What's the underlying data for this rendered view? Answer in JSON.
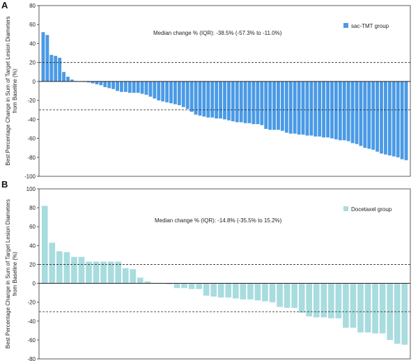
{
  "chart_data": [
    {
      "type": "bar",
      "panel_label": "A",
      "title": "",
      "ylabel_line1": "Best Percentage Change in Sum of Target Lesion Diameters",
      "ylabel_line2": "from Baseline (%)",
      "ylim": [
        -100,
        80
      ],
      "yticks": [
        80,
        60,
        40,
        20,
        0,
        -20,
        -40,
        -60,
        -80,
        -100
      ],
      "reference_lines": [
        20,
        -30
      ],
      "annotation": "Median change % (IQR): -38.5% (-57.3% to -11.0%)",
      "legend": "sac-TMT group",
      "legend_position": "top-right",
      "color": "#4a9ae6",
      "values": [
        52,
        49,
        28,
        27,
        25,
        10,
        5,
        2,
        0.5,
        0,
        -0.5,
        -1,
        -2,
        -3,
        -4,
        -6,
        -7,
        -8,
        -10,
        -11,
        -11,
        -12,
        -12,
        -12,
        -13,
        -14,
        -16,
        -18,
        -20,
        -21,
        -22,
        -23,
        -24,
        -25,
        -27,
        -29,
        -32,
        -35,
        -36,
        -37,
        -38,
        -38,
        -39,
        -39,
        -40,
        -41,
        -42,
        -43,
        -43,
        -44,
        -44,
        -45,
        -45,
        -46,
        -50,
        -51,
        -51,
        -51,
        -52,
        -54,
        -55,
        -55,
        -56,
        -56,
        -57,
        -57,
        -58,
        -58,
        -59,
        -59,
        -60,
        -61,
        -62,
        -62,
        -63,
        -65,
        -66,
        -68,
        -70,
        -71,
        -72,
        -74,
        -76,
        -77,
        -78,
        -79,
        -80,
        -82,
        -83
      ]
    },
    {
      "type": "bar",
      "panel_label": "B",
      "title": "",
      "ylabel_line1": "Best Percentage Change in Sum of Target Lesion Diameters",
      "ylabel_line2": "from Baseline (%)",
      "ylim": [
        -80,
        100
      ],
      "yticks": [
        100,
        80,
        60,
        40,
        20,
        0,
        -20,
        -40,
        -60,
        -80
      ],
      "reference_lines": [
        20,
        -30
      ],
      "annotation": "Median change % (IQR): -14.8% (-35.5% to 15.2%)",
      "legend": "Docetaxel group",
      "legend_position": "top-right",
      "color": "#a8dcdf",
      "values": [
        82,
        43,
        34,
        33,
        28,
        28,
        23,
        23,
        23,
        23,
        23,
        16,
        15,
        6,
        2,
        0,
        0,
        -1,
        -5,
        -5,
        -6,
        -6,
        -13,
        -14,
        -15,
        -15,
        -16,
        -17,
        -17,
        -18,
        -19,
        -20,
        -25,
        -26,
        -26,
        -31,
        -35,
        -36,
        -36,
        -37,
        -37,
        -47,
        -47,
        -52,
        -52,
        -53,
        -53,
        -60,
        -64,
        -65
      ]
    }
  ]
}
